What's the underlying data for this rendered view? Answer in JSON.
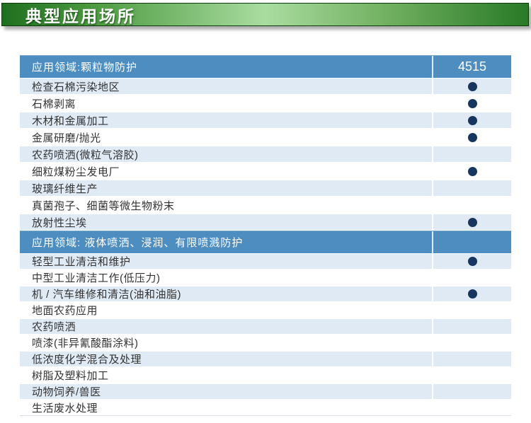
{
  "banner": {
    "title": "典型应用场所"
  },
  "table": {
    "product_column_header": "4515",
    "sections": [
      {
        "header": "应用领域:颗粒物防护",
        "show_product_header": true,
        "rows": [
          {
            "label": "检查石棉污染地区",
            "dot": true
          },
          {
            "label": "石棉剥离",
            "dot": true
          },
          {
            "label": "木材和金属加工",
            "dot": true
          },
          {
            "label": "金属研磨/抛光",
            "dot": true
          },
          {
            "label": "农药喷洒(微粒气溶胶)",
            "dot": false
          },
          {
            "label": "细粒煤粉尘发电厂",
            "dot": true
          },
          {
            "label": "玻璃纤维生产",
            "dot": false
          },
          {
            "label": "真菌孢子、细菌等微生物粉末",
            "dot": false
          },
          {
            "label": "放射性尘埃",
            "dot": true
          }
        ]
      },
      {
        "header": "应用领域: 液体喷洒、浸润、有限喷溅防护",
        "show_product_header": false,
        "rows": [
          {
            "label": "轻型工业清洁和维护",
            "dot": true
          },
          {
            "label": "中型工业清洁工作(低压力)",
            "dot": false
          },
          {
            "label": "机 / 汽车维修和清洁(油和油脂)",
            "dot": true
          },
          {
            "label": "地面农药应用",
            "dot": false
          },
          {
            "label": "农药喷洒",
            "dot": false
          },
          {
            "label": "喷漆(非异氰酸酯涂料)",
            "dot": false
          },
          {
            "label": "低浓度化学混合及处理",
            "dot": false
          },
          {
            "label": "树脂及塑料加工",
            "dot": false
          },
          {
            "label": "动物饲养/兽医",
            "dot": false
          },
          {
            "label": "生活废水处理",
            "dot": false
          }
        ]
      }
    ]
  },
  "colors": {
    "banner_dark_green": "#1e6f1e",
    "banner_light_green": "#a9dca0",
    "header_blue": "#4e8dc0",
    "row_alt_blue": "#dfeaf5",
    "dot_navy": "#16365f",
    "row_text": "#333333"
  }
}
